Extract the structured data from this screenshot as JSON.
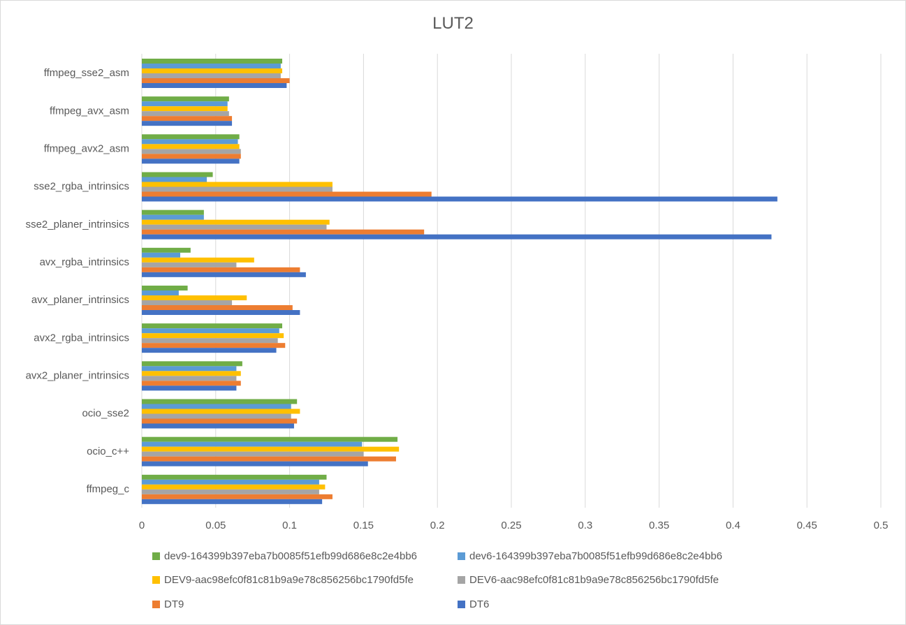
{
  "chart_data": {
    "type": "bar",
    "orientation": "horizontal",
    "title": "LUT2",
    "xlabel": "",
    "ylabel": "",
    "xlim": [
      0,
      0.5
    ],
    "xticks": [
      "0",
      "0.05",
      "0.1",
      "0.15",
      "0.2",
      "0.25",
      "0.3",
      "0.35",
      "0.4",
      "0.45",
      "0.5"
    ],
    "grid": "vertical",
    "legend_position": "bottom",
    "categories": [
      "ffmpeg_sse2_asm",
      "ffmpeg_avx_asm",
      "ffmpeg_avx2_asm",
      "sse2_rgba_intrinsics",
      "sse2_planer_intrinsics",
      "avx_rgba_intrinsics",
      "avx_planer_intrinsics",
      "avx2_rgba_intrinsics",
      "avx2_planer_intrinsics",
      "ocio_sse2",
      "ocio_c++",
      "ffmpeg_c"
    ],
    "series": [
      {
        "name": "dev9-164399b397eba7b0085f51efb99d686e8c2e4bb6",
        "color": "#70ad47",
        "values": [
          0.095,
          0.059,
          0.066,
          0.048,
          0.042,
          0.033,
          0.031,
          0.095,
          0.068,
          0.105,
          0.173,
          0.125
        ]
      },
      {
        "name": "dev6-164399b397eba7b0085f51efb99d686e8c2e4bb6",
        "color": "#5b9bd5",
        "values": [
          0.094,
          0.058,
          0.065,
          0.044,
          0.042,
          0.026,
          0.025,
          0.093,
          0.064,
          0.101,
          0.149,
          0.12
        ]
      },
      {
        "name": "DEV9-aac98efc0f81c81b9a9e78c856256bc1790fd5fe",
        "color": "#ffc000",
        "values": [
          0.095,
          0.058,
          0.066,
          0.129,
          0.127,
          0.076,
          0.071,
          0.096,
          0.067,
          0.107,
          0.174,
          0.124
        ]
      },
      {
        "name": "DEV6-aac98efc0f81c81b9a9e78c856256bc1790fd5fe",
        "color": "#a5a5a5",
        "values": [
          0.094,
          0.059,
          0.067,
          0.129,
          0.125,
          0.064,
          0.061,
          0.092,
          0.064,
          0.101,
          0.15,
          0.12
        ]
      },
      {
        "name": "DT9",
        "color": "#ed7d31",
        "values": [
          0.1,
          0.061,
          0.067,
          0.196,
          0.191,
          0.107,
          0.102,
          0.097,
          0.067,
          0.105,
          0.172,
          0.129
        ]
      },
      {
        "name": "DT6",
        "color": "#4472c4",
        "values": [
          0.098,
          0.061,
          0.066,
          0.43,
          0.426,
          0.111,
          0.107,
          0.091,
          0.064,
          0.103,
          0.153,
          0.122
        ]
      }
    ]
  }
}
